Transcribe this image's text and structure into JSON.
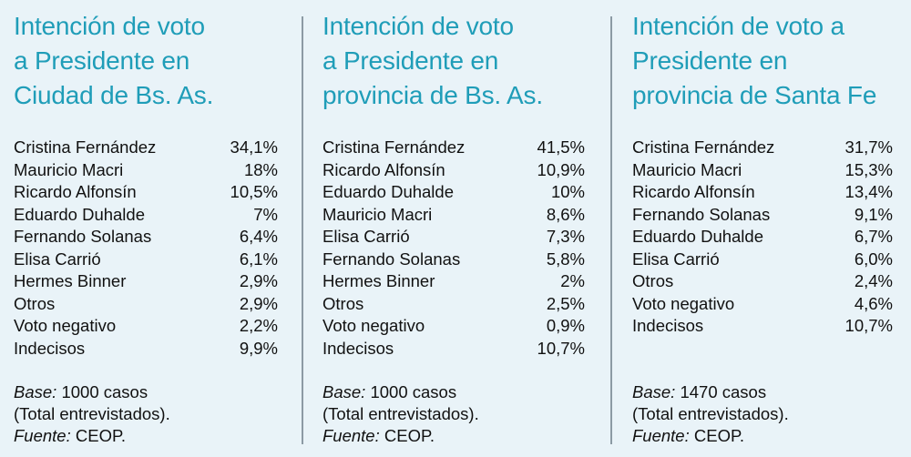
{
  "panels": [
    {
      "title_lines": [
        "Intención de voto",
        "a Presidente en",
        "Ciudad de Bs. As."
      ],
      "rows": [
        {
          "name": "Cristina Fernández",
          "value": "34,1%"
        },
        {
          "name": "Mauricio Macri",
          "value": "18%"
        },
        {
          "name": "Ricardo Alfonsín",
          "value": "10,5%"
        },
        {
          "name": "Eduardo Duhalde",
          "value": "7%"
        },
        {
          "name": "Fernando Solanas",
          "value": "6,4%"
        },
        {
          "name": "Elisa Carrió",
          "value": "6,1%"
        },
        {
          "name": "Hermes Binner",
          "value": "2,9%"
        },
        {
          "name": "Otros",
          "value": "2,9%"
        },
        {
          "name": "Voto negativo",
          "value": "2,2%"
        },
        {
          "name": "Indecisos",
          "value": "9,9%"
        }
      ],
      "base_label": "Base:",
      "base_value": "1000 casos",
      "total": "(Total entrevistados).",
      "source_label": "Fuente:",
      "source_value": "CEOP."
    },
    {
      "title_lines": [
        "Intención de voto",
        "a Presidente en",
        "provincia de Bs. As."
      ],
      "rows": [
        {
          "name": "Cristina Fernández",
          "value": "41,5%"
        },
        {
          "name": "Ricardo Alfonsín",
          "value": "10,9%"
        },
        {
          "name": "Eduardo Duhalde",
          "value": "10%"
        },
        {
          "name": "Mauricio Macri",
          "value": "8,6%"
        },
        {
          "name": "Elisa Carrió",
          "value": "7,3%"
        },
        {
          "name": "Fernando Solanas",
          "value": "5,8%"
        },
        {
          "name": "Hermes Binner",
          "value": "2%"
        },
        {
          "name": "Otros",
          "value": "2,5%"
        },
        {
          "name": "Voto negativo",
          "value": "0,9%"
        },
        {
          "name": "Indecisos",
          "value": "10,7%"
        }
      ],
      "base_label": "Base:",
      "base_value": "1000 casos",
      "total": "(Total entrevistados).",
      "source_label": "Fuente:",
      "source_value": "CEOP."
    },
    {
      "title_lines": [
        "Intención de voto a",
        "Presidente en",
        "provincia de Santa Fe"
      ],
      "rows": [
        {
          "name": "Cristina Fernández",
          "value": "31,7%"
        },
        {
          "name": "Mauricio Macri",
          "value": "15,3%"
        },
        {
          "name": "Ricardo Alfonsín",
          "value": "13,4%"
        },
        {
          "name": "Fernando Solanas",
          "value": "9,1%"
        },
        {
          "name": "Eduardo Duhalde",
          "value": "6,7%"
        },
        {
          "name": "Elisa Carrió",
          "value": "6,0%"
        },
        {
          "name": "Otros",
          "value": "2,4%"
        },
        {
          "name": "Voto negativo",
          "value": "4,6%"
        },
        {
          "name": "Indecisos",
          "value": "10,7%"
        }
      ],
      "base_label": "Base:",
      "base_value": "1470 casos",
      "total": "(Total entrevistados).",
      "source_label": "Fuente:",
      "source_value": "CEOP."
    }
  ]
}
